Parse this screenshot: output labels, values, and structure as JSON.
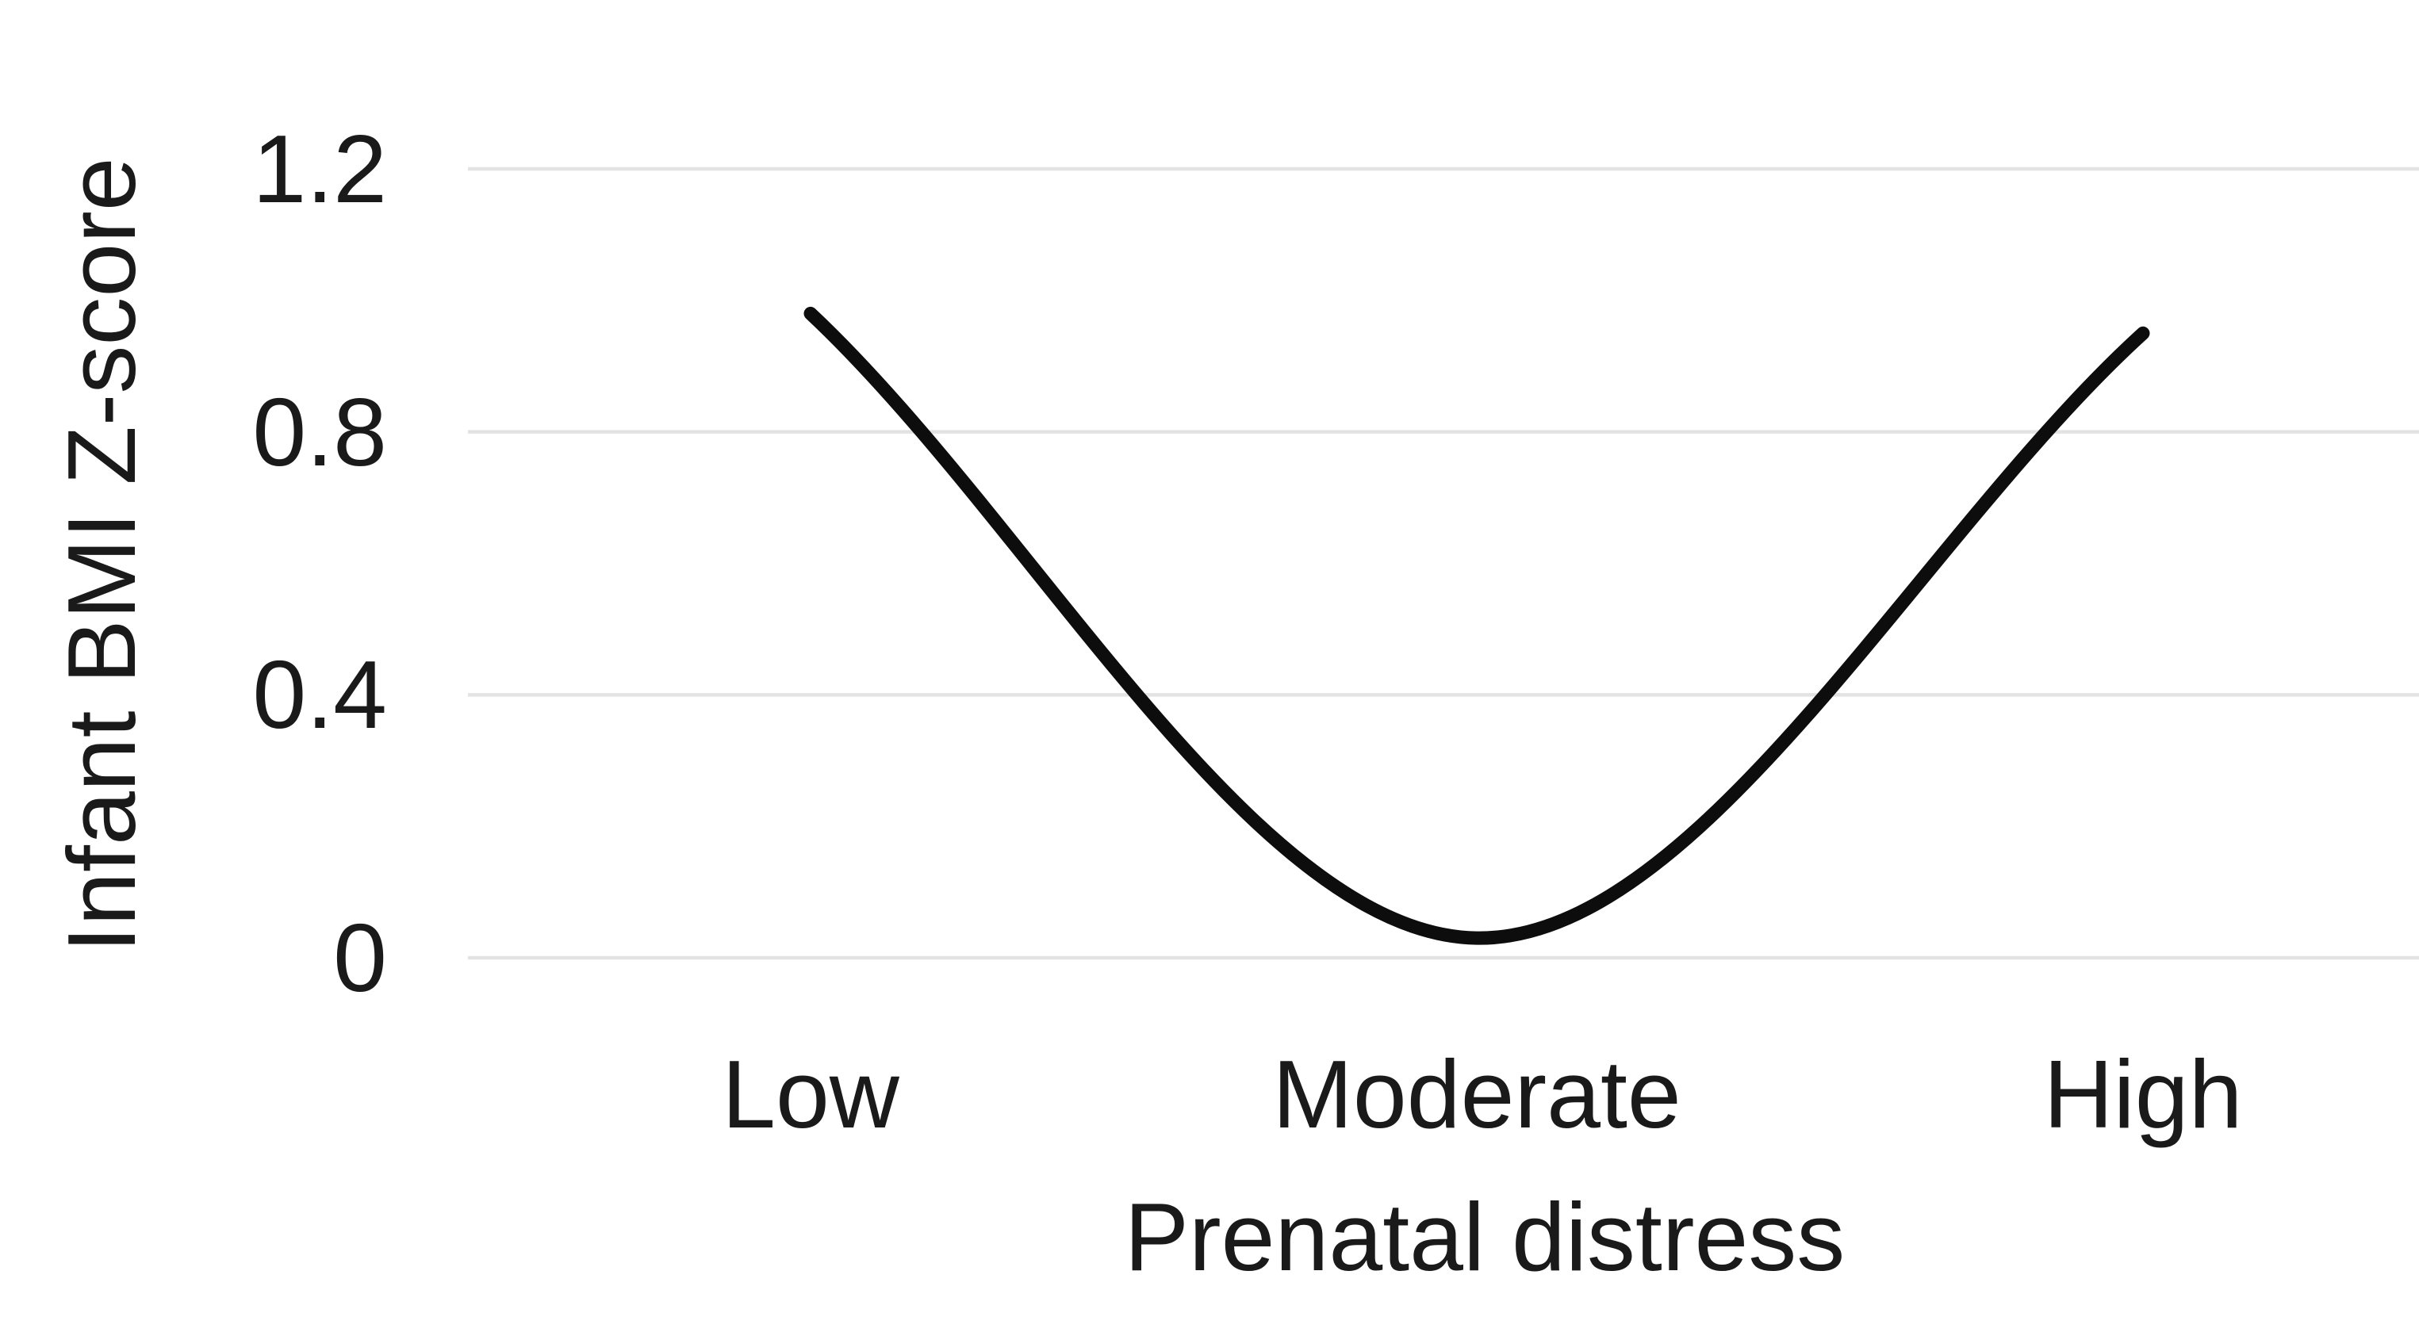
{
  "chart_data": {
    "type": "line",
    "title": "",
    "categories": [
      "Low",
      "Moderate",
      "High"
    ],
    "values": [
      0.98,
      0.03,
      0.95
    ],
    "xlabel": "Prenatal distress",
    "ylabel": "Infant BMI Z-score",
    "ylim": [
      0,
      1.2
    ],
    "yticks": [
      0,
      0.4,
      0.8,
      1.2
    ],
    "ytick_labels": [
      "0",
      "0.4",
      "0.8",
      "1.2"
    ],
    "grid": "horizontal-only",
    "legend": "none",
    "smooth": true,
    "line_color": "#0d0d0d",
    "gridline_color": "#e3e3e3",
    "text_color": "#1a1a1a",
    "background_color": "#ffffff"
  }
}
